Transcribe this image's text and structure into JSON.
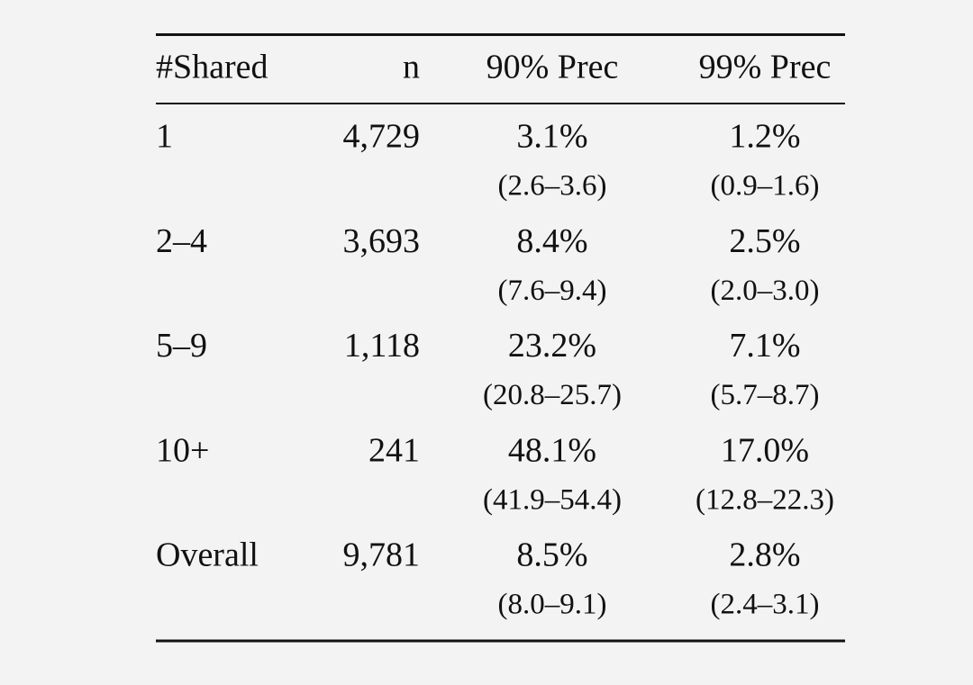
{
  "table": {
    "header": [
      "#Shared",
      "n",
      "90% Prec",
      "99% Prec"
    ],
    "rows": [
      {
        "label": "1",
        "n": "4,729",
        "p90": {
          "value": "3.1%",
          "ci": "(2.6–3.6)"
        },
        "p99": {
          "value": "1.2%",
          "ci": "(0.9–1.6)"
        }
      },
      {
        "label": "2–4",
        "n": "3,693",
        "p90": {
          "value": "8.4%",
          "ci": "(7.6–9.4)"
        },
        "p99": {
          "value": "2.5%",
          "ci": "(2.0–3.0)"
        }
      },
      {
        "label": "5–9",
        "n": "1,118",
        "p90": {
          "value": "23.2%",
          "ci": "(20.8–25.7)"
        },
        "p99": {
          "value": "7.1%",
          "ci": "(5.7–8.7)"
        }
      },
      {
        "label": "10+",
        "n": "241",
        "p90": {
          "value": "48.1%",
          "ci": "(41.9–54.4)"
        },
        "p99": {
          "value": "17.0%",
          "ci": "(12.8–22.3)"
        }
      },
      {
        "label": "Overall",
        "n": "9,781",
        "p90": {
          "value": "8.5%",
          "ci": "(8.0–9.1)"
        },
        "p99": {
          "value": "2.8%",
          "ci": "(2.4–3.1)"
        }
      }
    ]
  }
}
